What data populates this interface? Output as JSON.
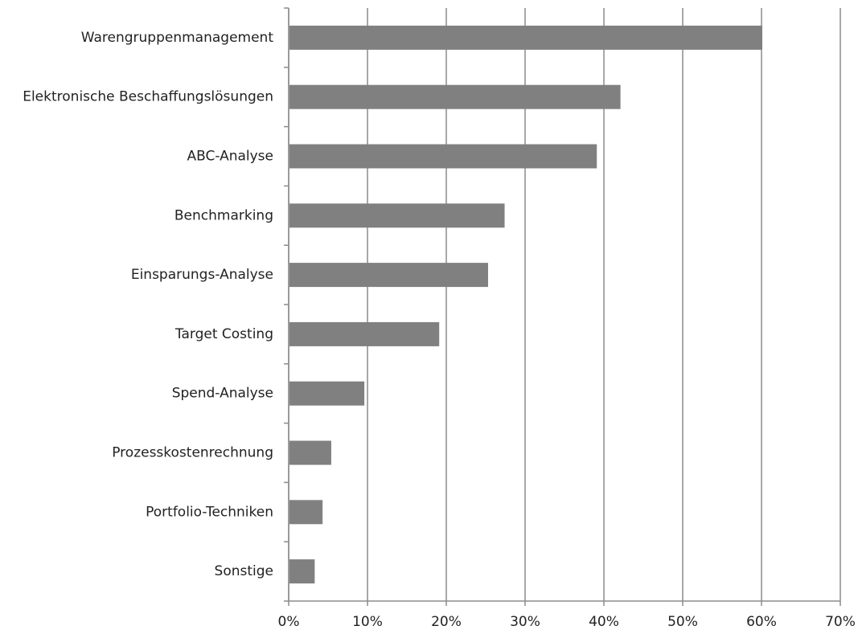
{
  "chart_data": {
    "type": "bar",
    "orientation": "horizontal",
    "categories": [
      "Warengruppenmanagement",
      "Elektronische Beschaffungslösungen",
      "ABC-Analyse",
      "Benchmarking",
      "Einsparungs-Analyse",
      "Target Costing",
      "Spend-Analyse",
      "Prozesskostenrechnung",
      "Portfolio-Techniken",
      "Sonstige"
    ],
    "values": [
      60,
      42,
      39,
      27.3,
      25.2,
      19,
      9.5,
      5.3,
      4.2,
      3.2
    ],
    "color": "#808080",
    "xlim": [
      0,
      70
    ],
    "xticks": [
      {
        "value": 0,
        "label": "0%"
      },
      {
        "value": 10,
        "label": "10%"
      },
      {
        "value": 20,
        "label": "20%"
      },
      {
        "value": 30,
        "label": "30%"
      },
      {
        "value": 40,
        "label": "40%"
      },
      {
        "value": 50,
        "label": "50%"
      },
      {
        "value": 60,
        "label": "60%"
      },
      {
        "value": 70,
        "label": "70%"
      }
    ],
    "grid": true
  }
}
